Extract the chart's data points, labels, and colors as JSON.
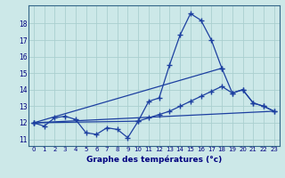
{
  "line_color": "#1c3fa0",
  "bg_color": "#cce8e8",
  "grid_color": "#aacfcf",
  "xlabel": "Graphe des températures (°c)",
  "xlim": [
    -0.5,
    23.5
  ],
  "ylim": [
    10.6,
    19.1
  ],
  "yticks": [
    11,
    12,
    13,
    14,
    15,
    16,
    17,
    18
  ],
  "line1_x": [
    0,
    1,
    2,
    3,
    4,
    5,
    6,
    7,
    8,
    9,
    10,
    11,
    12,
    13,
    14,
    15,
    16,
    17,
    18
  ],
  "line1_y": [
    12.0,
    11.8,
    12.3,
    12.4,
    12.2,
    11.4,
    11.3,
    11.7,
    11.6,
    11.1,
    12.1,
    13.3,
    13.5,
    15.5,
    17.3,
    18.6,
    18.2,
    17.0,
    15.3
  ],
  "line2_x": [
    0,
    18,
    19,
    20,
    21,
    22,
    23
  ],
  "line2_y": [
    12.0,
    15.3,
    13.8,
    14.0,
    13.2,
    13.0,
    12.7
  ],
  "line3_x": [
    0,
    10,
    11,
    12,
    13,
    14,
    15,
    16,
    17,
    18,
    19,
    20,
    21,
    22,
    23
  ],
  "line3_y": [
    12.0,
    12.1,
    12.3,
    12.5,
    12.7,
    13.0,
    13.3,
    13.6,
    13.9,
    14.2,
    13.8,
    14.0,
    13.2,
    13.0,
    12.7
  ],
  "line4_x": [
    0,
    23
  ],
  "line4_y": [
    12.0,
    12.7
  ]
}
